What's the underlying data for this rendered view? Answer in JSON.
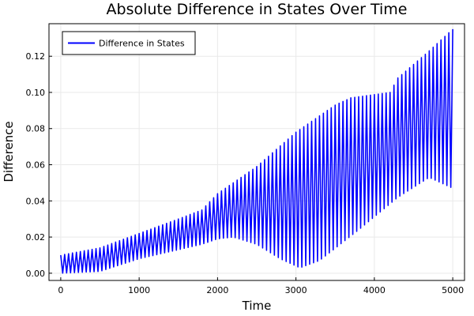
{
  "chart_data": {
    "type": "line",
    "title": "Absolute Difference in States Over Time",
    "xlabel": "Time",
    "ylabel": "Difference",
    "xlim": [
      -150,
      5150
    ],
    "ylim": [
      -0.004,
      0.138
    ],
    "xticks": [
      0,
      1000,
      2000,
      3000,
      4000,
      5000
    ],
    "xtick_labels": [
      "0",
      "1000",
      "2000",
      "3000",
      "4000",
      "5000"
    ],
    "yticks": [
      0.0,
      0.02,
      0.04,
      0.06,
      0.08,
      0.1,
      0.12
    ],
    "ytick_labels": [
      "0.00",
      "0.02",
      "0.04",
      "0.06",
      "0.08",
      "0.10",
      "0.12"
    ],
    "grid": true,
    "legend_position": "top-left",
    "oscillation_period": 50,
    "series": [
      {
        "name": "Difference in States",
        "color": "#0000ff",
        "upper_envelope": {
          "x": [
            0,
            500,
            1000,
            1500,
            1800,
            2000,
            2500,
            3000,
            3500,
            3700,
            4200,
            4300,
            4700,
            5000
          ],
          "y": [
            0.01,
            0.014,
            0.022,
            0.03,
            0.035,
            0.044,
            0.059,
            0.078,
            0.093,
            0.097,
            0.1,
            0.108,
            0.123,
            0.135
          ]
        },
        "lower_envelope": {
          "x": [
            0,
            500,
            1000,
            1500,
            1800,
            2000,
            2200,
            2500,
            2800,
            3050,
            3300,
            3800,
            4300,
            4700,
            5000
          ],
          "y": [
            0.0,
            0.001,
            0.008,
            0.013,
            0.016,
            0.019,
            0.02,
            0.016,
            0.008,
            0.003,
            0.007,
            0.024,
            0.042,
            0.053,
            0.047
          ]
        }
      }
    ]
  }
}
